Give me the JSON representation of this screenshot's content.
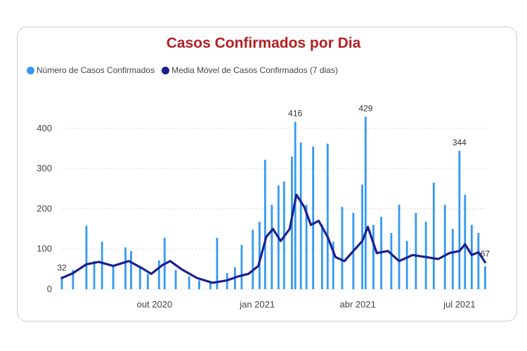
{
  "chart_data": {
    "type": "bar",
    "title": "Casos Confirmados por Dia",
    "xlabel": "",
    "ylabel": "",
    "ylim": [
      0,
      440
    ],
    "yticks": [
      0,
      100,
      200,
      300,
      400
    ],
    "x_start": "2020-07-10",
    "x_end": "2021-07-25",
    "xticks": [
      {
        "date": "2020-10-01",
        "label": "out 2020"
      },
      {
        "date": "2021-01-01",
        "label": "jan 2021"
      },
      {
        "date": "2021-04-01",
        "label": "abr 2021"
      },
      {
        "date": "2021-07-01",
        "label": "jul 2021"
      }
    ],
    "legend_position": "top-left",
    "grid": true,
    "series": [
      {
        "name": "Número de Casos Confirmados",
        "kind": "bar",
        "color": "#3399f3",
        "points": [
          [
            "2020-07-10",
            32
          ],
          [
            "2020-07-20",
            48
          ],
          [
            "2020-08-01",
            158
          ],
          [
            "2020-08-08",
            70
          ],
          [
            "2020-08-15",
            118
          ],
          [
            "2020-08-25",
            60
          ],
          [
            "2020-09-05",
            104
          ],
          [
            "2020-09-10",
            95
          ],
          [
            "2020-09-18",
            55
          ],
          [
            "2020-09-25",
            38
          ],
          [
            "2020-10-05",
            72
          ],
          [
            "2020-10-10",
            128
          ],
          [
            "2020-10-20",
            48
          ],
          [
            "2020-11-01",
            32
          ],
          [
            "2020-11-10",
            22
          ],
          [
            "2020-11-20",
            18
          ],
          [
            "2020-11-26",
            128
          ],
          [
            "2020-12-05",
            40
          ],
          [
            "2020-12-12",
            55
          ],
          [
            "2020-12-18",
            110
          ],
          [
            "2020-12-28",
            148
          ],
          [
            "2021-01-03",
            168
          ],
          [
            "2021-01-08",
            322
          ],
          [
            "2021-01-14",
            210
          ],
          [
            "2021-01-20",
            258
          ],
          [
            "2021-01-25",
            268
          ],
          [
            "2021-02-01",
            330
          ],
          [
            "2021-02-04",
            416
          ],
          [
            "2021-02-09",
            365
          ],
          [
            "2021-02-14",
            210
          ],
          [
            "2021-02-20",
            355
          ],
          [
            "2021-02-28",
            160
          ],
          [
            "2021-03-05",
            362
          ],
          [
            "2021-03-10",
            118
          ],
          [
            "2021-03-18",
            205
          ],
          [
            "2021-03-28",
            190
          ],
          [
            "2021-04-05",
            260
          ],
          [
            "2021-04-08",
            429
          ],
          [
            "2021-04-15",
            160
          ],
          [
            "2021-04-22",
            180
          ],
          [
            "2021-05-01",
            140
          ],
          [
            "2021-05-08",
            210
          ],
          [
            "2021-05-15",
            120
          ],
          [
            "2021-05-23",
            190
          ],
          [
            "2021-06-01",
            168
          ],
          [
            "2021-06-08",
            265
          ],
          [
            "2021-06-18",
            210
          ],
          [
            "2021-06-25",
            150
          ],
          [
            "2021-07-01",
            344
          ],
          [
            "2021-07-06",
            235
          ],
          [
            "2021-07-12",
            160
          ],
          [
            "2021-07-18",
            140
          ],
          [
            "2021-07-24",
            57
          ]
        ]
      },
      {
        "name": "Media Móvel de Casos Confirmados (7 dias)",
        "kind": "line",
        "color": "#1a2090",
        "points": [
          [
            "2020-07-10",
            28
          ],
          [
            "2020-07-20",
            40
          ],
          [
            "2020-08-01",
            62
          ],
          [
            "2020-08-12",
            68
          ],
          [
            "2020-08-25",
            58
          ],
          [
            "2020-09-08",
            70
          ],
          [
            "2020-09-20",
            52
          ],
          [
            "2020-09-28",
            38
          ],
          [
            "2020-10-08",
            60
          ],
          [
            "2020-10-15",
            70
          ],
          [
            "2020-10-25",
            50
          ],
          [
            "2020-11-08",
            28
          ],
          [
            "2020-11-22",
            16
          ],
          [
            "2020-12-05",
            22
          ],
          [
            "2020-12-15",
            32
          ],
          [
            "2020-12-24",
            38
          ],
          [
            "2021-01-02",
            58
          ],
          [
            "2021-01-09",
            130
          ],
          [
            "2021-01-15",
            150
          ],
          [
            "2021-01-22",
            120
          ],
          [
            "2021-01-30",
            150
          ],
          [
            "2021-02-05",
            235
          ],
          [
            "2021-02-12",
            205
          ],
          [
            "2021-02-18",
            160
          ],
          [
            "2021-02-25",
            170
          ],
          [
            "2021-03-05",
            130
          ],
          [
            "2021-03-12",
            80
          ],
          [
            "2021-03-20",
            70
          ],
          [
            "2021-03-28",
            95
          ],
          [
            "2021-04-05",
            120
          ],
          [
            "2021-04-10",
            155
          ],
          [
            "2021-04-18",
            90
          ],
          [
            "2021-04-28",
            95
          ],
          [
            "2021-05-08",
            70
          ],
          [
            "2021-05-20",
            85
          ],
          [
            "2021-06-01",
            80
          ],
          [
            "2021-06-12",
            75
          ],
          [
            "2021-06-22",
            90
          ],
          [
            "2021-07-01",
            95
          ],
          [
            "2021-07-06",
            112
          ],
          [
            "2021-07-12",
            85
          ],
          [
            "2021-07-18",
            92
          ],
          [
            "2021-07-24",
            67
          ]
        ]
      }
    ],
    "data_labels": [
      {
        "date": "2020-07-10",
        "value": 32,
        "text": "32"
      },
      {
        "date": "2021-02-04",
        "value": 416,
        "text": "416"
      },
      {
        "date": "2021-04-08",
        "value": 429,
        "text": "429"
      },
      {
        "date": "2021-07-01",
        "value": 344,
        "text": "344"
      },
      {
        "date": "2021-07-24",
        "value": 67,
        "text": "67"
      }
    ]
  }
}
